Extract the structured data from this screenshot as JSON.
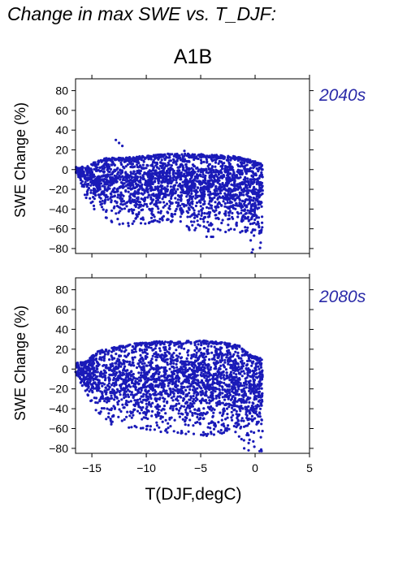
{
  "title": "Change in max SWE vs. T_DJF:",
  "scenario": "A1B",
  "colors": {
    "points": "#1a1ab8",
    "period_label": "#2a2aa8",
    "axis": "#000000"
  },
  "chart_data": [
    {
      "type": "scatter",
      "period": "2040s",
      "xlabel": "",
      "ylabel": "SWE Change (%)",
      "xlim": [
        -16.5,
        5
      ],
      "ylim": [
        -85,
        92
      ],
      "yticks": [
        -80,
        -60,
        -40,
        -20,
        0,
        20,
        40,
        60,
        80
      ],
      "xticks_shown": false,
      "cloud": {
        "x_range": [
          -16.5,
          0.7
        ],
        "upper_envelope": [
          [
            -16.5,
            3
          ],
          [
            -15.5,
            3
          ],
          [
            -14.5,
            9
          ],
          [
            -13.5,
            12
          ],
          [
            -12,
            12
          ],
          [
            -10,
            14
          ],
          [
            -8,
            16
          ],
          [
            -6,
            16
          ],
          [
            -4,
            15
          ],
          [
            -2,
            14
          ],
          [
            -0.5,
            10
          ],
          [
            0.7,
            6
          ]
        ],
        "lower_envelope": [
          [
            -16.5,
            -2
          ],
          [
            -15.5,
            -30
          ],
          [
            -14.5,
            -44
          ],
          [
            -13.5,
            -52
          ],
          [
            -12,
            -58
          ],
          [
            -10,
            -55
          ],
          [
            -8,
            -52
          ],
          [
            -6,
            -62
          ],
          [
            -4,
            -70
          ],
          [
            -2,
            -62
          ],
          [
            -1,
            -78
          ],
          [
            -0.5,
            -82
          ],
          [
            0.2,
            -84
          ]
        ],
        "density_center": [
          -9,
          -2
        ]
      },
      "outliers": [
        [
          -12.8,
          30
        ],
        [
          -12.5,
          27
        ],
        [
          -12.2,
          24
        ],
        [
          -6.5,
          19
        ],
        [
          -0.3,
          -84
        ]
      ]
    },
    {
      "type": "scatter",
      "period": "2080s",
      "xlabel": "T(DJF,degC)",
      "ylabel": "SWE Change (%)",
      "xlim": [
        -16.5,
        5
      ],
      "ylim": [
        -85,
        92
      ],
      "yticks": [
        -80,
        -60,
        -40,
        -20,
        0,
        20,
        40,
        60,
        80
      ],
      "xticks": [
        -15,
        -10,
        -5,
        0,
        5
      ],
      "cloud": {
        "x_range": [
          -16.5,
          0.7
        ],
        "upper_envelope": [
          [
            -16.5,
            6
          ],
          [
            -15.5,
            8
          ],
          [
            -14.5,
            18
          ],
          [
            -13,
            22
          ],
          [
            -11,
            26
          ],
          [
            -9,
            28
          ],
          [
            -7,
            28
          ],
          [
            -5,
            29
          ],
          [
            -3,
            27
          ],
          [
            -1.5,
            24
          ],
          [
            -0.5,
            15
          ],
          [
            0.7,
            10
          ]
        ],
        "lower_envelope": [
          [
            -16.5,
            -8
          ],
          [
            -15.5,
            -25
          ],
          [
            -14.5,
            -45
          ],
          [
            -13.5,
            -55
          ],
          [
            -12,
            -60
          ],
          [
            -10,
            -62
          ],
          [
            -8,
            -64
          ],
          [
            -6,
            -66
          ],
          [
            -4,
            -68
          ],
          [
            -2,
            -62
          ],
          [
            -1,
            -75
          ],
          [
            -0.5,
            -80
          ],
          [
            0.2,
            -83
          ]
        ],
        "density_center": [
          -8,
          0
        ]
      },
      "outliers": [
        [
          -1.0,
          -80
        ],
        [
          -0.6,
          -82
        ]
      ]
    }
  ]
}
